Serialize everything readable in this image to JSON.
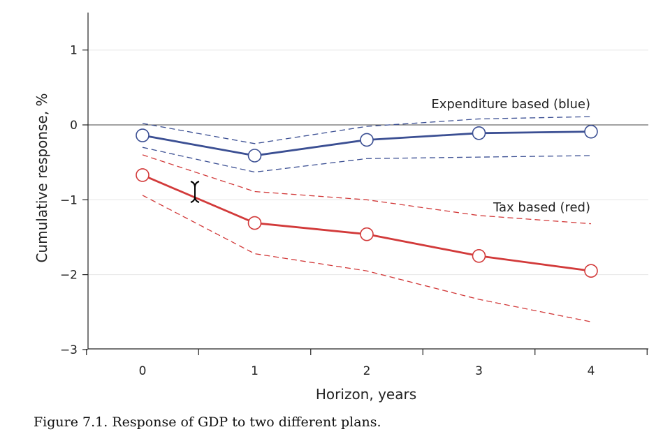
{
  "chart_data": {
    "type": "line",
    "xlabel": "Horizon, years",
    "ylabel": "Cumulative response, %",
    "x": [
      0,
      1,
      2,
      3,
      4
    ],
    "xlim": [
      -0.5,
      4.5
    ],
    "ylim": [
      -3,
      1.5
    ],
    "yticks": [
      1,
      0,
      -1,
      -2,
      -3
    ],
    "ytick_labels": [
      "1",
      "0",
      "−1",
      "−2",
      "−3"
    ],
    "xtick_labels": [
      "0",
      "1",
      "2",
      "3",
      "4"
    ],
    "grid": true,
    "zero_line": true,
    "series": [
      {
        "name": "Expenditure based (blue)",
        "color": "#3b4f93",
        "values": [
          -0.14,
          -0.41,
          -0.2,
          -0.11,
          -0.09
        ],
        "upper": [
          0.02,
          -0.25,
          -0.02,
          0.08,
          0.11
        ],
        "lower": [
          -0.3,
          -0.63,
          -0.45,
          -0.43,
          -0.41
        ]
      },
      {
        "name": "Tax based (red)",
        "color": "#d23a3a",
        "values": [
          -0.67,
          -1.31,
          -1.46,
          -1.75,
          -1.95
        ],
        "upper": [
          -0.4,
          -0.89,
          -1.0,
          -1.21,
          -1.32
        ],
        "lower": [
          -0.94,
          -1.72,
          -1.95,
          -2.33,
          -2.63
        ]
      }
    ],
    "annotations": [
      {
        "text": "Expenditure based (blue)",
        "series": 0
      },
      {
        "text": "Tax based (red)",
        "series": 1
      }
    ]
  },
  "caption": "Figure 7.1. Response of GDP to two different plans."
}
